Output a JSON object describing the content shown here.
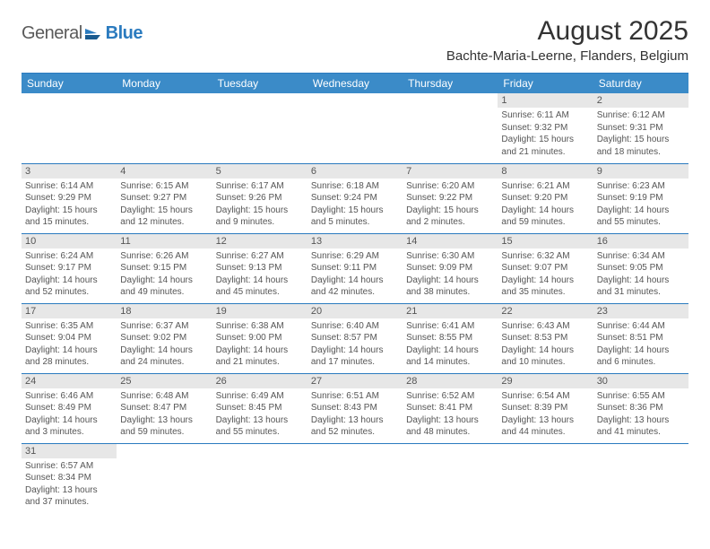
{
  "logo": {
    "text1": "General",
    "text2": "Blue"
  },
  "title": "August 2025",
  "location": "Bachte-Maria-Leerne, Flanders, Belgium",
  "colors": {
    "header_bg": "#3b8bc8",
    "header_border": "#2b7bbf",
    "daynum_bg": "#e7e7e7",
    "text": "#555555"
  },
  "daynames": [
    "Sunday",
    "Monday",
    "Tuesday",
    "Wednesday",
    "Thursday",
    "Friday",
    "Saturday"
  ],
  "weeks": [
    [
      null,
      null,
      null,
      null,
      null,
      {
        "n": "1",
        "sr": "Sunrise: 6:11 AM",
        "ss": "Sunset: 9:32 PM",
        "dl": "Daylight: 15 hours and 21 minutes."
      },
      {
        "n": "2",
        "sr": "Sunrise: 6:12 AM",
        "ss": "Sunset: 9:31 PM",
        "dl": "Daylight: 15 hours and 18 minutes."
      }
    ],
    [
      {
        "n": "3",
        "sr": "Sunrise: 6:14 AM",
        "ss": "Sunset: 9:29 PM",
        "dl": "Daylight: 15 hours and 15 minutes."
      },
      {
        "n": "4",
        "sr": "Sunrise: 6:15 AM",
        "ss": "Sunset: 9:27 PM",
        "dl": "Daylight: 15 hours and 12 minutes."
      },
      {
        "n": "5",
        "sr": "Sunrise: 6:17 AM",
        "ss": "Sunset: 9:26 PM",
        "dl": "Daylight: 15 hours and 9 minutes."
      },
      {
        "n": "6",
        "sr": "Sunrise: 6:18 AM",
        "ss": "Sunset: 9:24 PM",
        "dl": "Daylight: 15 hours and 5 minutes."
      },
      {
        "n": "7",
        "sr": "Sunrise: 6:20 AM",
        "ss": "Sunset: 9:22 PM",
        "dl": "Daylight: 15 hours and 2 minutes."
      },
      {
        "n": "8",
        "sr": "Sunrise: 6:21 AM",
        "ss": "Sunset: 9:20 PM",
        "dl": "Daylight: 14 hours and 59 minutes."
      },
      {
        "n": "9",
        "sr": "Sunrise: 6:23 AM",
        "ss": "Sunset: 9:19 PM",
        "dl": "Daylight: 14 hours and 55 minutes."
      }
    ],
    [
      {
        "n": "10",
        "sr": "Sunrise: 6:24 AM",
        "ss": "Sunset: 9:17 PM",
        "dl": "Daylight: 14 hours and 52 minutes."
      },
      {
        "n": "11",
        "sr": "Sunrise: 6:26 AM",
        "ss": "Sunset: 9:15 PM",
        "dl": "Daylight: 14 hours and 49 minutes."
      },
      {
        "n": "12",
        "sr": "Sunrise: 6:27 AM",
        "ss": "Sunset: 9:13 PM",
        "dl": "Daylight: 14 hours and 45 minutes."
      },
      {
        "n": "13",
        "sr": "Sunrise: 6:29 AM",
        "ss": "Sunset: 9:11 PM",
        "dl": "Daylight: 14 hours and 42 minutes."
      },
      {
        "n": "14",
        "sr": "Sunrise: 6:30 AM",
        "ss": "Sunset: 9:09 PM",
        "dl": "Daylight: 14 hours and 38 minutes."
      },
      {
        "n": "15",
        "sr": "Sunrise: 6:32 AM",
        "ss": "Sunset: 9:07 PM",
        "dl": "Daylight: 14 hours and 35 minutes."
      },
      {
        "n": "16",
        "sr": "Sunrise: 6:34 AM",
        "ss": "Sunset: 9:05 PM",
        "dl": "Daylight: 14 hours and 31 minutes."
      }
    ],
    [
      {
        "n": "17",
        "sr": "Sunrise: 6:35 AM",
        "ss": "Sunset: 9:04 PM",
        "dl": "Daylight: 14 hours and 28 minutes."
      },
      {
        "n": "18",
        "sr": "Sunrise: 6:37 AM",
        "ss": "Sunset: 9:02 PM",
        "dl": "Daylight: 14 hours and 24 minutes."
      },
      {
        "n": "19",
        "sr": "Sunrise: 6:38 AM",
        "ss": "Sunset: 9:00 PM",
        "dl": "Daylight: 14 hours and 21 minutes."
      },
      {
        "n": "20",
        "sr": "Sunrise: 6:40 AM",
        "ss": "Sunset: 8:57 PM",
        "dl": "Daylight: 14 hours and 17 minutes."
      },
      {
        "n": "21",
        "sr": "Sunrise: 6:41 AM",
        "ss": "Sunset: 8:55 PM",
        "dl": "Daylight: 14 hours and 14 minutes."
      },
      {
        "n": "22",
        "sr": "Sunrise: 6:43 AM",
        "ss": "Sunset: 8:53 PM",
        "dl": "Daylight: 14 hours and 10 minutes."
      },
      {
        "n": "23",
        "sr": "Sunrise: 6:44 AM",
        "ss": "Sunset: 8:51 PM",
        "dl": "Daylight: 14 hours and 6 minutes."
      }
    ],
    [
      {
        "n": "24",
        "sr": "Sunrise: 6:46 AM",
        "ss": "Sunset: 8:49 PM",
        "dl": "Daylight: 14 hours and 3 minutes."
      },
      {
        "n": "25",
        "sr": "Sunrise: 6:48 AM",
        "ss": "Sunset: 8:47 PM",
        "dl": "Daylight: 13 hours and 59 minutes."
      },
      {
        "n": "26",
        "sr": "Sunrise: 6:49 AM",
        "ss": "Sunset: 8:45 PM",
        "dl": "Daylight: 13 hours and 55 minutes."
      },
      {
        "n": "27",
        "sr": "Sunrise: 6:51 AM",
        "ss": "Sunset: 8:43 PM",
        "dl": "Daylight: 13 hours and 52 minutes."
      },
      {
        "n": "28",
        "sr": "Sunrise: 6:52 AM",
        "ss": "Sunset: 8:41 PM",
        "dl": "Daylight: 13 hours and 48 minutes."
      },
      {
        "n": "29",
        "sr": "Sunrise: 6:54 AM",
        "ss": "Sunset: 8:39 PM",
        "dl": "Daylight: 13 hours and 44 minutes."
      },
      {
        "n": "30",
        "sr": "Sunrise: 6:55 AM",
        "ss": "Sunset: 8:36 PM",
        "dl": "Daylight: 13 hours and 41 minutes."
      }
    ],
    [
      {
        "n": "31",
        "sr": "Sunrise: 6:57 AM",
        "ss": "Sunset: 8:34 PM",
        "dl": "Daylight: 13 hours and 37 minutes."
      },
      null,
      null,
      null,
      null,
      null,
      null
    ]
  ]
}
